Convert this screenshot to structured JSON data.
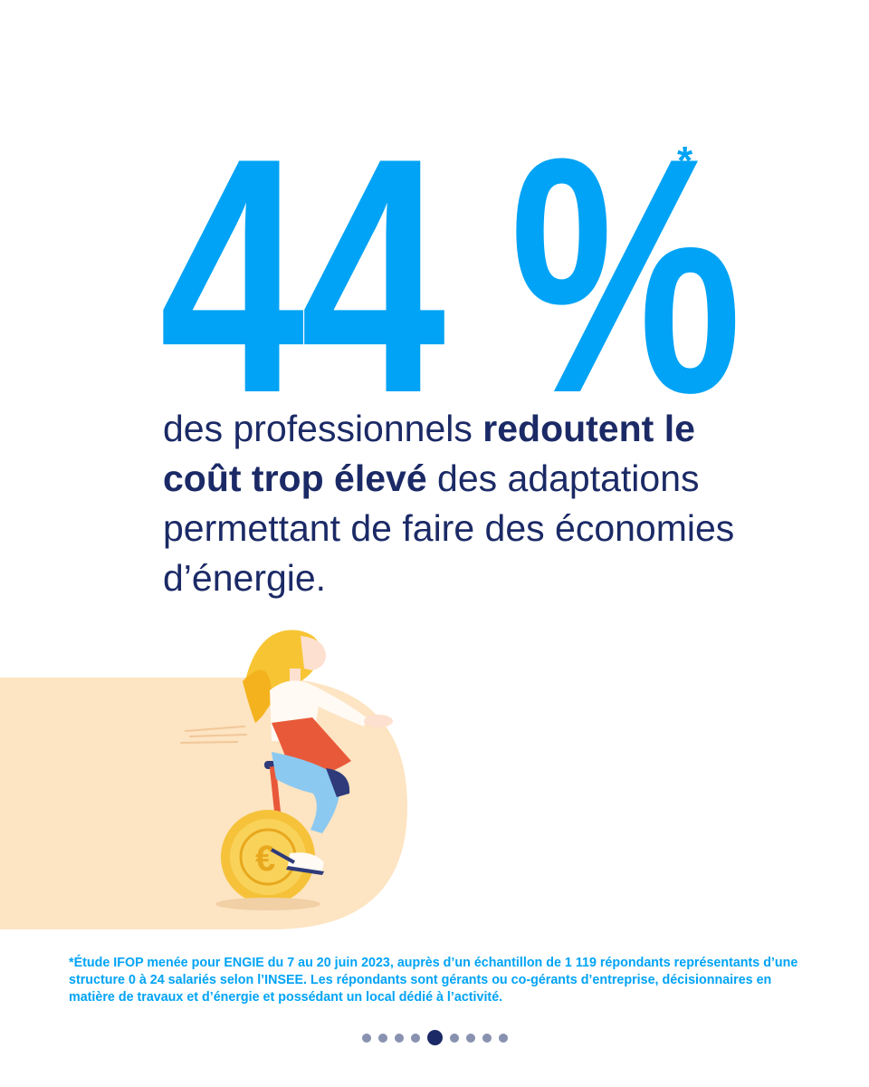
{
  "stat": {
    "value": "44 %",
    "asterisk": "*"
  },
  "headline": {
    "part1": "des professionnels ",
    "bold1": "redoutent le coût trop élevé",
    "part2": " des adaptations permettant de faire des économies d’énergie."
  },
  "footnote": "*Étude IFOP menée pour ENGIE du 7 au 20 juin 2023, auprès d’un échantillon de 1 119 répondants représentants d’une structure 0 à 24 salariés selon l’INSEE. Les répondants sont gérants ou co-gérants d’entreprise, décisionnaires en matière de travaux et d’énergie et possédant un local dédié à l’activité.",
  "pagination": {
    "total": 9,
    "active_index": 4
  },
  "colors": {
    "accent": "#00a3f5",
    "navy": "#1b2a66",
    "peach": "#fde4c2",
    "coin": "#f5c23a"
  },
  "illustration": {
    "icon": "woman-on-euro-coin-unicycle-illustration"
  }
}
